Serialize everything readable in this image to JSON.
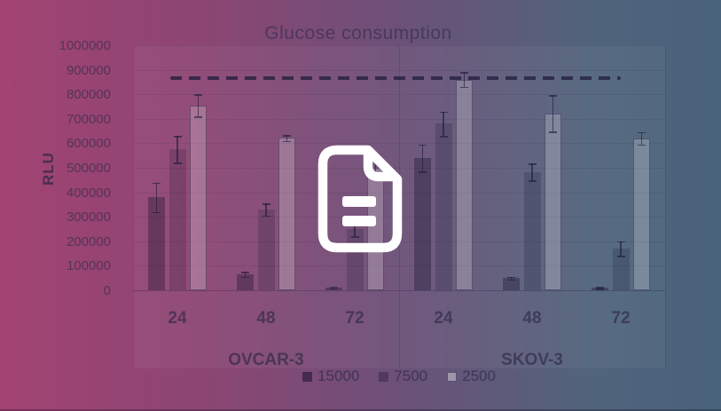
{
  "overlay": {
    "gradient_left": "#a24373",
    "gradient_right": "#47627a",
    "icon": "document-icon",
    "icon_color": "#ffffff"
  },
  "chart_data": {
    "type": "bar",
    "title": "Glucose consumption",
    "xlabel": "",
    "ylabel": "RLU",
    "ylim": [
      0,
      1000000
    ],
    "ytick_step": 100000,
    "grid": true,
    "legend_position": "bottom",
    "groups": [
      {
        "label": "OVCAR-3",
        "ticks": [
          "24",
          "48",
          "72"
        ]
      },
      {
        "label": "SKOV-3",
        "ticks": [
          "24",
          "48",
          "72"
        ]
      }
    ],
    "categories": [
      "OVCAR-3 24",
      "OVCAR-3 48",
      "OVCAR-3 72",
      "SKOV-3 24",
      "SKOV-3 48",
      "SKOV-3 72"
    ],
    "series": [
      {
        "name": "15000",
        "values": [
          380000,
          65000,
          12000,
          540000,
          50000,
          10000
        ],
        "errors": [
          60000,
          10000,
          4000,
          55000,
          6000,
          3000
        ]
      },
      {
        "name": "7500",
        "values": [
          575000,
          330000,
          250000,
          680000,
          483000,
          170000
        ],
        "errors": [
          55000,
          25000,
          30000,
          50000,
          35000,
          30000
        ]
      },
      {
        "name": "2500",
        "values": [
          755000,
          622000,
          500000,
          860000,
          722000,
          620000
        ],
        "errors": [
          45000,
          12000,
          30000,
          30000,
          75000,
          25000
        ]
      }
    ],
    "reference_line": {
      "value": 865000,
      "style": "dashed"
    }
  }
}
